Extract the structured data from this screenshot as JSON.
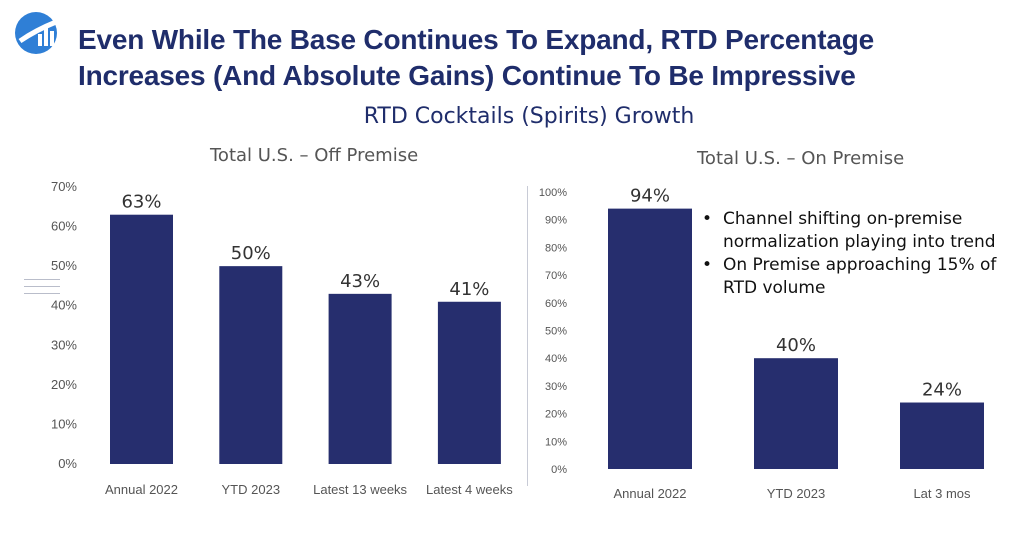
{
  "title": {
    "line1": "Even While The Base Continues To Expand, RTD Percentage",
    "line2": "Increases (And Absolute Gains) Continue To Be Impressive"
  },
  "subtitle": "RTD Cocktails (Spirits) Growth",
  "colors": {
    "title": "#1f2d6b",
    "bar": "#262e6e",
    "axis_text": "#555555",
    "logo": "#2f7fd6"
  },
  "icons": {
    "logo": "logo-icon",
    "menu": "menu-icon"
  },
  "bullets": [
    "Channel shifting on-premise normalization playing into trend",
    "On Premise approaching 15% of RTD volume"
  ],
  "bullet_marker": "•",
  "chart_data": [
    {
      "type": "bar",
      "title": "Total U.S. – Off Premise",
      "categories": [
        "Annual 2022",
        "YTD 2023",
        "Latest 13 weeks",
        "Latest 4 weeks"
      ],
      "values": [
        63,
        50,
        43,
        41
      ],
      "data_labels": [
        "63%",
        "50%",
        "43%",
        "41%"
      ],
      "ylim": [
        0,
        70
      ],
      "yticks": [
        "0%",
        "10%",
        "20%",
        "30%",
        "40%",
        "50%",
        "60%",
        "70%"
      ],
      "grid": false,
      "legend": "none"
    },
    {
      "type": "bar",
      "title": "Total U.S. – On Premise",
      "categories": [
        "Annual 2022",
        "YTD 2023",
        "Lat 3 mos"
      ],
      "values": [
        94,
        40,
        24
      ],
      "data_labels": [
        "94%",
        "40%",
        "24%"
      ],
      "ylim": [
        0,
        100
      ],
      "yticks": [
        "0%",
        "10%",
        "20%",
        "30%",
        "40%",
        "50%",
        "60%",
        "70%",
        "80%",
        "90%",
        "100%"
      ],
      "grid": false,
      "legend": "none"
    }
  ]
}
